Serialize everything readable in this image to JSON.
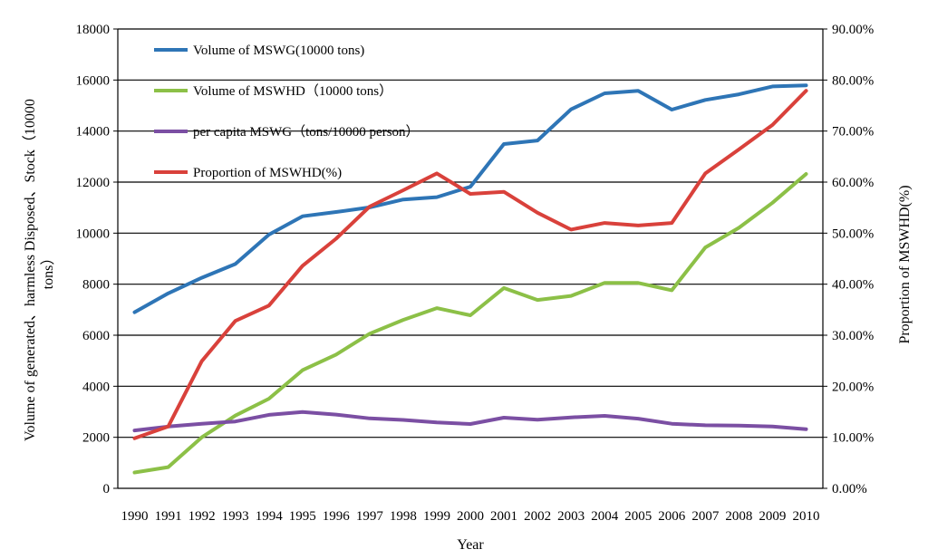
{
  "chart_data": {
    "type": "line",
    "title": "",
    "categories": [
      "1990",
      "1991",
      "1992",
      "1993",
      "1994",
      "1995",
      "1996",
      "1997",
      "1998",
      "1999",
      "2000",
      "2001",
      "2002",
      "2003",
      "2004",
      "2005",
      "2006",
      "2007",
      "2008",
      "2009",
      "2010"
    ],
    "xlabel": "Year",
    "ylabel_lines": [
      "Volume of generated、harmless Disposed、Stock（10000",
      "tons）"
    ],
    "y2label": "Proportion of MSWHD(%)",
    "ylim": [
      0,
      18000
    ],
    "yticks": [
      "0",
      "2000",
      "4000",
      "6000",
      "8000",
      "10000",
      "12000",
      "14000",
      "16000",
      "18000"
    ],
    "y2lim": [
      0,
      0.9
    ],
    "y2ticks": [
      "0.00%",
      "10.00%",
      "20.00%",
      "30.00%",
      "40.00%",
      "50.00%",
      "60.00%",
      "70.00%",
      "80.00%",
      "90.00%"
    ],
    "grid": true,
    "legend_position": "top-left",
    "series": [
      {
        "name": "Volume of MSWG(10000 tons)",
        "axis": "left",
        "color": "#2e75b6",
        "values": [
          6900,
          7640,
          8250,
          8790,
          9940,
          10660,
          10830,
          11010,
          11320,
          11410,
          11820,
          13490,
          13630,
          14850,
          15480,
          15580,
          14840,
          15220,
          15440,
          15750,
          15790
        ]
      },
      {
        "name": "Volume of MSWHD（10000 tons）",
        "axis": "left",
        "color": "#8cc047",
        "values": [
          620,
          830,
          2000,
          2850,
          3510,
          4630,
          5240,
          6060,
          6600,
          7060,
          6780,
          7850,
          7380,
          7540,
          8050,
          8050,
          7760,
          9440,
          10210,
          11190,
          12320
        ]
      },
      {
        "name": "per capita MSWG（tons/10000 person）",
        "axis": "left",
        "color": "#7b4fa3",
        "values": [
          2270,
          2420,
          2530,
          2620,
          2880,
          2990,
          2890,
          2740,
          2680,
          2580,
          2520,
          2770,
          2690,
          2780,
          2840,
          2730,
          2530,
          2470,
          2460,
          2420,
          2320
        ]
      },
      {
        "name": "Proportion of MSWHD(%)",
        "axis": "right",
        "color": "#d9413b",
        "values": [
          0.098,
          0.121,
          0.249,
          0.328,
          0.358,
          0.436,
          0.489,
          0.552,
          0.584,
          0.617,
          0.577,
          0.581,
          0.54,
          0.507,
          0.52,
          0.515,
          0.52,
          0.617,
          0.664,
          0.712,
          0.779
        ]
      }
    ]
  }
}
